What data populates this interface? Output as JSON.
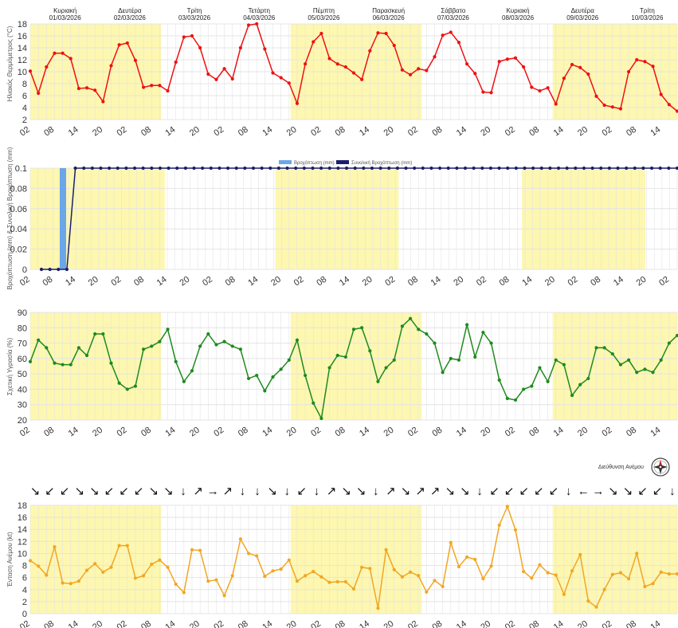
{
  "days": [
    {
      "name": "Κυριακή",
      "date": "01/03/2026"
    },
    {
      "name": "Δευτέρα",
      "date": "02/03/2026"
    },
    {
      "name": "Τρίτη",
      "date": "03/03/2026"
    },
    {
      "name": "Τετάρτη",
      "date": "04/03/2026"
    },
    {
      "name": "Πέμπτη",
      "date": "05/03/2026"
    },
    {
      "name": "Παρασκευή",
      "date": "06/03/2026"
    },
    {
      "name": "Σάββατο",
      "date": "07/03/2026"
    },
    {
      "name": "Κυριακή",
      "date": "08/03/2026"
    },
    {
      "name": "Δευτέρα",
      "date": "09/03/2026"
    },
    {
      "name": "Τρίτη",
      "date": "10/03/2026"
    }
  ],
  "hour_ticks": [
    "02",
    "08",
    "14",
    "20"
  ],
  "colors": {
    "temperature": "#ee1111",
    "rain": "#6aa6e8",
    "rain_total": "#1b1f6b",
    "humidity": "#1e8a1e",
    "wind": "#f2a623",
    "day_band": "#fdf7b0",
    "grid": "#e4e4e4"
  },
  "wind_direction": {
    "label": "Διεύθυνση Ανέμου",
    "arrows": [
      "↘",
      "↙",
      "↙",
      "↘",
      "↘",
      "↙",
      "↙",
      "↙",
      "↘",
      "↘",
      "↓",
      "↗",
      "→",
      "↗",
      "↓",
      "↓",
      "↘",
      "↓",
      "↙",
      "↓",
      "↗",
      "↘",
      "↘",
      "↓",
      "↗",
      "↘",
      "↗",
      "↗",
      "↘",
      "↘",
      "↓",
      "↙",
      "↙",
      "↙",
      "↙",
      "↙",
      "↓",
      "←",
      "→",
      "↘",
      "↘",
      "↙",
      "↙",
      "↓"
    ]
  },
  "chart_data": [
    {
      "type": "line",
      "ylabel": "Ηλιακός Θερμόμετρος (°C)",
      "ylim": [
        2,
        18
      ],
      "yticks": [
        2,
        4,
        6,
        8,
        10,
        12,
        14,
        16,
        18
      ],
      "grid": true,
      "series": [
        {
          "values": [
            10.1,
            6.4,
            10.8,
            13.1,
            13.1,
            12.2,
            7.2,
            7.3,
            6.9,
            5.0,
            11.0,
            14.5,
            14.8,
            11.9,
            7.4,
            7.7,
            7.7,
            6.8,
            11.6,
            15.8,
            16.0,
            14.0,
            9.6,
            8.7,
            10.5,
            8.8,
            14.0,
            17.8,
            18.0,
            13.8,
            9.8,
            9.0,
            8.1,
            4.7,
            11.3,
            15.0,
            16.4,
            12.2,
            11.3,
            10.8,
            9.8,
            8.7,
            13.5,
            16.5,
            16.4,
            14.4,
            10.3,
            9.5,
            10.5,
            10.2,
            12.5,
            16.1,
            16.6,
            14.9,
            11.3,
            9.7,
            6.6,
            6.5,
            11.7,
            12.1,
            12.3,
            10.8,
            7.4,
            6.8,
            7.3,
            4.6,
            8.9,
            11.2,
            10.7,
            9.6,
            5.9,
            4.4,
            4.1,
            3.8,
            10.0,
            12.0,
            11.7,
            10.9,
            6.2,
            4.5,
            3.4
          ]
        }
      ]
    },
    {
      "type": "bar",
      "ylabel": "Βροχόπτωση (mm) & Συνολική Βροχόπτωση (mm)",
      "ylim": [
        0,
        0.1
      ],
      "yticks": [
        0,
        0.02,
        0.04,
        0.06,
        0.08,
        0.1
      ],
      "grid": true,
      "series": [
        {
          "name": "Βροχόπτωση (mm)",
          "type": "bar",
          "values": [
            0,
            0,
            0,
            0,
            0.1
          ]
        },
        {
          "name": "Συνολική Βροχόπτωση (mm)",
          "type": "line",
          "values": [
            0,
            0,
            0,
            0,
            0.1,
            0.1,
            0.1,
            0.1,
            0.1,
            0.1,
            0.1,
            0.1,
            0.1,
            0.1,
            0.1,
            0.1,
            0.1,
            0.1,
            0.1,
            0.1,
            0.1,
            0.1,
            0.1,
            0.1,
            0.1,
            0.1,
            0.1,
            0.1,
            0.1,
            0.1,
            0.1,
            0.1,
            0.1,
            0.1,
            0.1,
            0.1,
            0.1,
            0.1,
            0.1,
            0.1,
            0.1,
            0.1,
            0.1,
            0.1,
            0.1,
            0.1,
            0.1,
            0.1,
            0.1,
            0.1,
            0.1,
            0.1,
            0.1,
            0.1,
            0.1,
            0.1,
            0.1,
            0.1,
            0.1,
            0.1,
            0.1,
            0.1,
            0.1,
            0.1,
            0.1,
            0.1,
            0.1,
            0.1,
            0.1,
            0.1,
            0.1,
            0.1,
            0.1,
            0.1,
            0.1,
            0.1
          ]
        }
      ]
    },
    {
      "type": "line",
      "ylabel": "Σχετική Υγρασία (%)",
      "ylim": [
        20,
        90
      ],
      "yticks": [
        20,
        30,
        40,
        50,
        60,
        70,
        80,
        90
      ],
      "grid": true,
      "series": [
        {
          "values": [
            58,
            72,
            67,
            57,
            56,
            56,
            67,
            62,
            76,
            76,
            57,
            44,
            40,
            42,
            66,
            68,
            71,
            79,
            58,
            45,
            52,
            68,
            76,
            69,
            71,
            68,
            66,
            47,
            49,
            39,
            48,
            53,
            59,
            72,
            49,
            31,
            21,
            54,
            62,
            61,
            79,
            80,
            65,
            45,
            54,
            59,
            81,
            86,
            79,
            76,
            70,
            51,
            60,
            59,
            82,
            61,
            77,
            70,
            46,
            34,
            33,
            40,
            42,
            54,
            45,
            59,
            56,
            36,
            43,
            47,
            67,
            67,
            63,
            56,
            59,
            51,
            53,
            51,
            59,
            70,
            75
          ]
        }
      ]
    },
    {
      "type": "line",
      "ylabel": "Ένταση Ανέμου (kt)",
      "ylim": [
        0,
        18
      ],
      "yticks": [
        0,
        2,
        4,
        6,
        8,
        10,
        12,
        14,
        16,
        18
      ],
      "grid": true,
      "series": [
        {
          "values": [
            8.8,
            7.9,
            6.4,
            11.1,
            5.1,
            5.0,
            5.4,
            7.2,
            8.3,
            6.9,
            7.7,
            11.3,
            11.3,
            5.9,
            6.3,
            8.2,
            8.9,
            7.7,
            4.9,
            3.5,
            10.6,
            10.5,
            5.4,
            5.6,
            3.0,
            6.3,
            12.4,
            10.0,
            9.6,
            6.2,
            7.1,
            7.4,
            8.9,
            5.4,
            6.3,
            7.0,
            6.1,
            5.2,
            5.3,
            5.3,
            4.1,
            7.7,
            7.5,
            0.9,
            10.6,
            7.3,
            6.1,
            6.9,
            6.3,
            3.6,
            5.5,
            4.5,
            11.8,
            7.8,
            9.4,
            9.0,
            5.8,
            7.9,
            14.7,
            17.8,
            13.9,
            7.0,
            5.9,
            8.1,
            6.8,
            6.4,
            3.2,
            7.1,
            9.8,
            2.1,
            1.1,
            4.0,
            6.5,
            6.8,
            5.8,
            10.0,
            4.5,
            5.0,
            6.9,
            6.6,
            6.6
          ]
        }
      ]
    }
  ]
}
